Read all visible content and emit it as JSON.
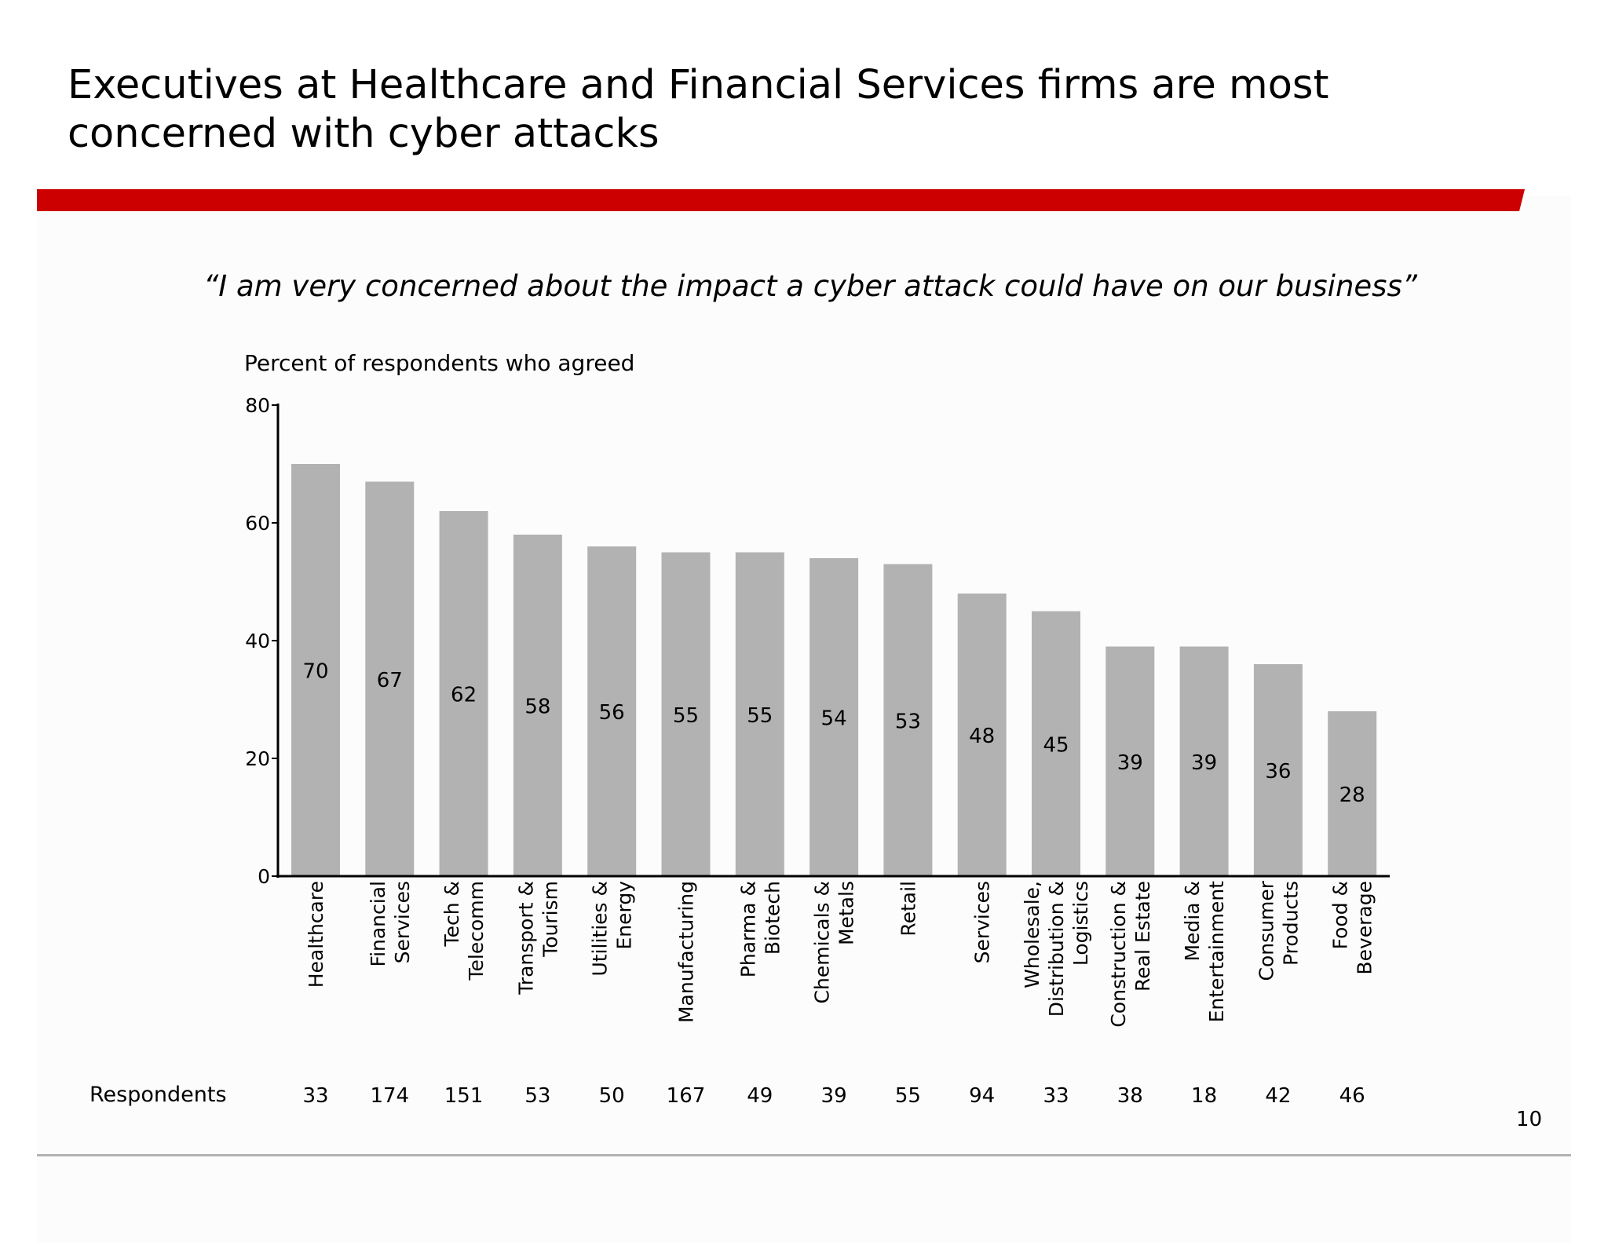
{
  "title_lines": [
    "Executives at Healthcare and Financial Services firms are most",
    "concerned with cyber attacks"
  ],
  "quote": "“I  am very concerned about the impact a cyber attack could have on our business”",
  "accent_color": "#cc0000",
  "bar_color": "#b3b2b3",
  "respondents_label": "Respondents",
  "page_number": "10",
  "chart_data": {
    "type": "bar",
    "title": "",
    "ylabel": "Percent of respondents who agreed",
    "xlabel": "",
    "ylim": [
      0,
      80
    ],
    "yticks": [
      0,
      20,
      40,
      60,
      80
    ],
    "grid": false,
    "categories": [
      [
        "Healthcare"
      ],
      [
        "Financial",
        "Services"
      ],
      [
        "Tech &",
        "Telecomm"
      ],
      [
        "Transport &",
        "Tourism"
      ],
      [
        "Utilities &",
        "Energy"
      ],
      [
        "Manufacturing"
      ],
      [
        "Pharma &",
        "Biotech"
      ],
      [
        "Chemicals &",
        "Metals"
      ],
      [
        "Retail"
      ],
      [
        "Services"
      ],
      [
        "Wholesale,",
        "Distribution &",
        "Logistics"
      ],
      [
        "Construction &",
        "Real Estate"
      ],
      [
        "Media &",
        "Entertainment"
      ],
      [
        "Consumer",
        "Products"
      ],
      [
        "Food &",
        "Beverage"
      ]
    ],
    "values": [
      70,
      67,
      62,
      58,
      56,
      55,
      55,
      54,
      53,
      48,
      45,
      39,
      39,
      36,
      28
    ],
    "respondents": [
      33,
      174,
      151,
      53,
      50,
      167,
      49,
      39,
      55,
      94,
      33,
      38,
      18,
      42,
      46
    ]
  }
}
